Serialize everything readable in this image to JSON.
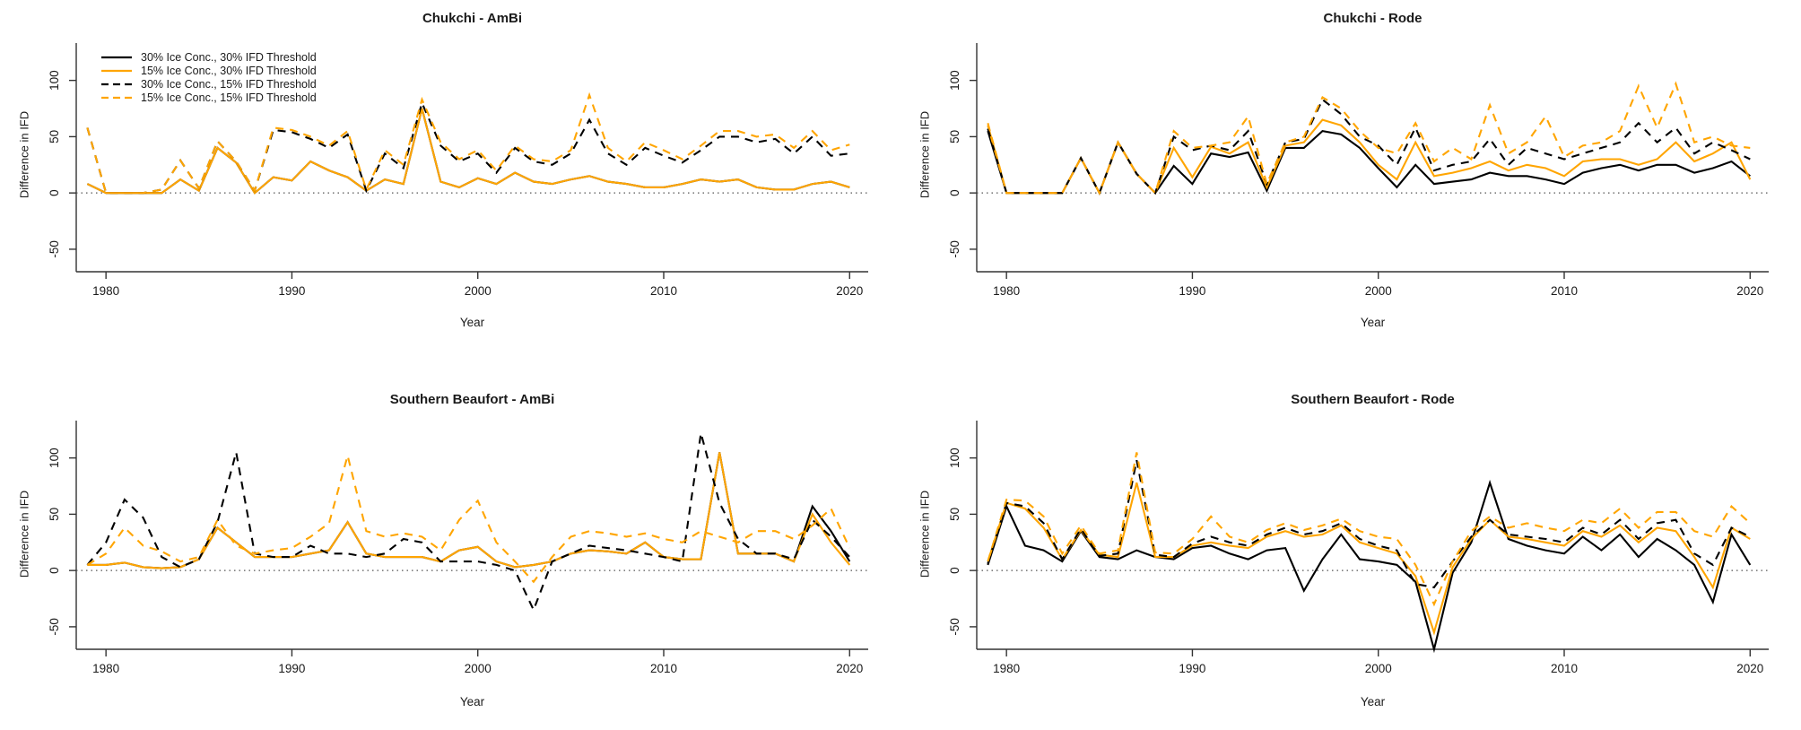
{
  "figure": {
    "background": "#ffffff",
    "colors": {
      "black": "#000000",
      "orange": "#FFA500",
      "axis": "#333333",
      "zero_line": "#555555"
    },
    "legend_panel": 0,
    "x_label": "Year",
    "y_label": "Difference in IFD"
  },
  "chart_data": [
    {
      "type": "line",
      "title": "Chukchi - AmBi",
      "xlabel": "Year",
      "ylabel": "Difference in IFD",
      "row": 0,
      "x_ticks": [
        1980,
        1990,
        2000,
        2010,
        2020
      ],
      "y_ticks": [
        -50,
        0,
        50,
        100
      ],
      "xlim": [
        1978.4,
        2021.0
      ],
      "ylim": [
        -70,
        130
      ],
      "zero_line": true,
      "legend": true,
      "legend_position": "topleft",
      "x_start_year": 1979,
      "series": [
        {
          "name": "30% Ice Conc., 30% IFD Threshold",
          "color": "black",
          "dash": false,
          "values": [
            8,
            0,
            0,
            0,
            0,
            12,
            2,
            40,
            27,
            0,
            14,
            11,
            28,
            20,
            14,
            2,
            12,
            8,
            75,
            10,
            5,
            13,
            8,
            18,
            10,
            8,
            12,
            15,
            10,
            8,
            5,
            5,
            8,
            12,
            10,
            12,
            5,
            3,
            3,
            8,
            10,
            5
          ]
        },
        {
          "name": "15% Ice Conc., 30% IFD Threshold",
          "color": "orange",
          "dash": false,
          "values": [
            8,
            0,
            0,
            0,
            0,
            12,
            2,
            40,
            27,
            0,
            14,
            11,
            28,
            20,
            14,
            2,
            12,
            8,
            75,
            10,
            5,
            13,
            8,
            18,
            10,
            8,
            12,
            15,
            10,
            8,
            5,
            5,
            8,
            12,
            10,
            12,
            5,
            3,
            3,
            8,
            10,
            5
          ]
        },
        {
          "name": "30% Ice Conc., 15% IFD Threshold",
          "color": "black",
          "dash": true,
          "values": [
            58,
            0,
            0,
            0,
            3,
            29,
            4,
            46,
            28,
            2,
            56,
            54,
            48,
            40,
            52,
            2,
            35,
            22,
            80,
            42,
            28,
            35,
            18,
            40,
            28,
            25,
            35,
            65,
            35,
            25,
            40,
            33,
            27,
            38,
            50,
            50,
            45,
            48,
            35,
            50,
            33,
            35
          ]
        },
        {
          "name": "15% Ice Conc., 15% IFD Threshold",
          "color": "orange",
          "dash": true,
          "values": [
            58,
            0,
            0,
            0,
            3,
            29,
            4,
            46,
            28,
            2,
            58,
            56,
            50,
            42,
            55,
            3,
            38,
            25,
            83,
            45,
            30,
            38,
            20,
            42,
            30,
            28,
            38,
            87,
            40,
            28,
            45,
            38,
            30,
            42,
            55,
            55,
            50,
            52,
            40,
            55,
            38,
            43
          ]
        }
      ]
    },
    {
      "type": "line",
      "title": "Chukchi - Rode",
      "xlabel": "Year",
      "ylabel": "Difference in IFD",
      "row": 0,
      "x_ticks": [
        1980,
        1990,
        2000,
        2010,
        2020
      ],
      "y_ticks": [
        -50,
        0,
        50,
        100
      ],
      "xlim": [
        1978.4,
        2021.0
      ],
      "ylim": [
        -70,
        130
      ],
      "zero_line": true,
      "legend": false,
      "legend_position": null,
      "x_start_year": 1979,
      "series": [
        {
          "name": "30% Ice Conc., 30% IFD Threshold",
          "color": "black",
          "dash": false,
          "values": [
            55,
            0,
            0,
            0,
            0,
            31,
            0,
            45,
            17,
            0,
            24,
            8,
            35,
            32,
            36,
            2,
            40,
            40,
            55,
            52,
            40,
            22,
            5,
            25,
            8,
            10,
            12,
            18,
            15,
            15,
            12,
            8,
            18,
            22,
            25,
            20,
            25,
            25,
            18,
            22,
            28,
            15
          ]
        },
        {
          "name": "15% Ice Conc., 30% IFD Threshold",
          "color": "orange",
          "dash": false,
          "values": [
            60,
            0,
            0,
            0,
            0,
            31,
            0,
            45,
            17,
            0,
            40,
            14,
            41,
            35,
            45,
            5,
            42,
            45,
            65,
            60,
            45,
            25,
            12,
            45,
            15,
            18,
            22,
            28,
            20,
            25,
            22,
            15,
            28,
            30,
            30,
            25,
            30,
            45,
            28,
            35,
            45,
            12
          ]
        },
        {
          "name": "30% Ice Conc., 15% IFD Threshold",
          "color": "black",
          "dash": true,
          "values": [
            57,
            0,
            0,
            0,
            0,
            31,
            0,
            45,
            17,
            0,
            50,
            38,
            42,
            38,
            55,
            8,
            45,
            48,
            83,
            70,
            50,
            42,
            25,
            58,
            20,
            25,
            28,
            48,
            25,
            40,
            35,
            30,
            35,
            40,
            45,
            62,
            45,
            58,
            35,
            45,
            38,
            30
          ]
        },
        {
          "name": "15% Ice Conc., 15% IFD Threshold",
          "color": "orange",
          "dash": true,
          "values": [
            62,
            0,
            0,
            0,
            0,
            31,
            0,
            45,
            17,
            0,
            55,
            40,
            42,
            45,
            68,
            8,
            45,
            50,
            85,
            75,
            55,
            40,
            35,
            62,
            28,
            40,
            30,
            78,
            35,
            45,
            68,
            32,
            42,
            45,
            55,
            95,
            58,
            97,
            45,
            50,
            42,
            40
          ]
        }
      ]
    },
    {
      "type": "line",
      "title": "Southern Beaufort - AmBi",
      "xlabel": "Year",
      "ylabel": "Difference in IFD",
      "row": 1,
      "x_ticks": [
        1980,
        1990,
        2000,
        2010,
        2020
      ],
      "y_ticks": [
        -50,
        0,
        50,
        100
      ],
      "xlim": [
        1978.4,
        2021.0
      ],
      "ylim": [
        -70,
        130
      ],
      "zero_line": true,
      "legend": false,
      "legend_position": null,
      "x_start_year": 1979,
      "series": [
        {
          "name": "30% Ice Conc., 30% IFD Threshold",
          "color": "black",
          "dash": false,
          "values": [
            5,
            5,
            7,
            3,
            2,
            3,
            10,
            38,
            25,
            12,
            12,
            12,
            15,
            18,
            43,
            15,
            12,
            12,
            12,
            8,
            18,
            21,
            8,
            3,
            5,
            8,
            15,
            18,
            17,
            15,
            25,
            12,
            10,
            10,
            105,
            15,
            15,
            15,
            8,
            57,
            35,
            8
          ]
        },
        {
          "name": "15% Ice Conc., 30% IFD Threshold",
          "color": "orange",
          "dash": false,
          "values": [
            5,
            5,
            7,
            3,
            2,
            3,
            10,
            38,
            25,
            12,
            12,
            12,
            15,
            18,
            43,
            15,
            12,
            12,
            12,
            8,
            18,
            21,
            8,
            3,
            5,
            8,
            15,
            18,
            17,
            15,
            25,
            12,
            10,
            10,
            105,
            15,
            15,
            15,
            8,
            50,
            25,
            5
          ]
        },
        {
          "name": "30% Ice Conc., 15% IFD Threshold",
          "color": "black",
          "dash": true,
          "values": [
            5,
            25,
            63,
            47,
            12,
            3,
            10,
            43,
            105,
            15,
            12,
            12,
            22,
            15,
            15,
            12,
            15,
            28,
            25,
            8,
            8,
            8,
            5,
            0,
            -35,
            8,
            15,
            22,
            20,
            18,
            15,
            12,
            8,
            122,
            60,
            28,
            15,
            15,
            10,
            45,
            30,
            12
          ]
        },
        {
          "name": "15% Ice Conc., 15% IFD Threshold",
          "color": "orange",
          "dash": true,
          "values": [
            5,
            15,
            38,
            22,
            17,
            8,
            12,
            45,
            22,
            15,
            18,
            20,
            30,
            42,
            102,
            35,
            30,
            33,
            30,
            18,
            45,
            62,
            25,
            8,
            -10,
            12,
            30,
            35,
            33,
            30,
            33,
            28,
            25,
            35,
            30,
            25,
            35,
            35,
            28,
            40,
            55,
            20
          ]
        }
      ]
    },
    {
      "type": "line",
      "title": "Southern Beaufort - Rode",
      "xlabel": "Year",
      "ylabel": "Difference in IFD",
      "row": 1,
      "x_ticks": [
        1980,
        1990,
        2000,
        2010,
        2020
      ],
      "y_ticks": [
        -50,
        0,
        50,
        100
      ],
      "xlim": [
        1978.4,
        2021.0
      ],
      "ylim": [
        -70,
        130
      ],
      "zero_line": true,
      "legend": false,
      "legend_position": null,
      "x_start_year": 1979,
      "series": [
        {
          "name": "30% Ice Conc., 30% IFD Threshold",
          "color": "black",
          "dash": false,
          "values": [
            5,
            57,
            22,
            18,
            8,
            35,
            12,
            10,
            18,
            12,
            10,
            20,
            22,
            15,
            10,
            18,
            20,
            -18,
            10,
            32,
            10,
            8,
            5,
            -10,
            -70,
            -2,
            25,
            78,
            28,
            22,
            18,
            15,
            30,
            18,
            32,
            12,
            28,
            18,
            5,
            -28,
            32,
            5
          ]
        },
        {
          "name": "15% Ice Conc., 30% IFD Threshold",
          "color": "orange",
          "dash": false,
          "values": [
            8,
            60,
            55,
            38,
            10,
            36,
            14,
            12,
            78,
            12,
            12,
            22,
            25,
            22,
            20,
            30,
            35,
            30,
            32,
            40,
            25,
            20,
            15,
            -5,
            -55,
            3,
            28,
            45,
            30,
            28,
            25,
            22,
            35,
            30,
            40,
            25,
            38,
            35,
            12,
            -15,
            38,
            28
          ]
        },
        {
          "name": "30% Ice Conc., 15% IFD Threshold",
          "color": "black",
          "dash": true,
          "values": [
            6,
            60,
            57,
            42,
            10,
            37,
            13,
            15,
            98,
            14,
            12,
            24,
            30,
            25,
            22,
            32,
            38,
            32,
            35,
            42,
            28,
            22,
            18,
            -12,
            -15,
            8,
            30,
            45,
            32,
            30,
            28,
            25,
            38,
            32,
            45,
            28,
            42,
            45,
            15,
            5,
            38,
            30
          ]
        },
        {
          "name": "15% Ice Conc., 15% IFD Threshold",
          "color": "orange",
          "dash": true,
          "values": [
            8,
            63,
            62,
            48,
            15,
            40,
            15,
            18,
            105,
            16,
            15,
            28,
            48,
            30,
            25,
            36,
            42,
            36,
            40,
            46,
            35,
            30,
            28,
            5,
            -30,
            8,
            35,
            48,
            38,
            42,
            38,
            35,
            45,
            42,
            55,
            38,
            52,
            52,
            35,
            30,
            57,
            42
          ]
        }
      ]
    }
  ]
}
